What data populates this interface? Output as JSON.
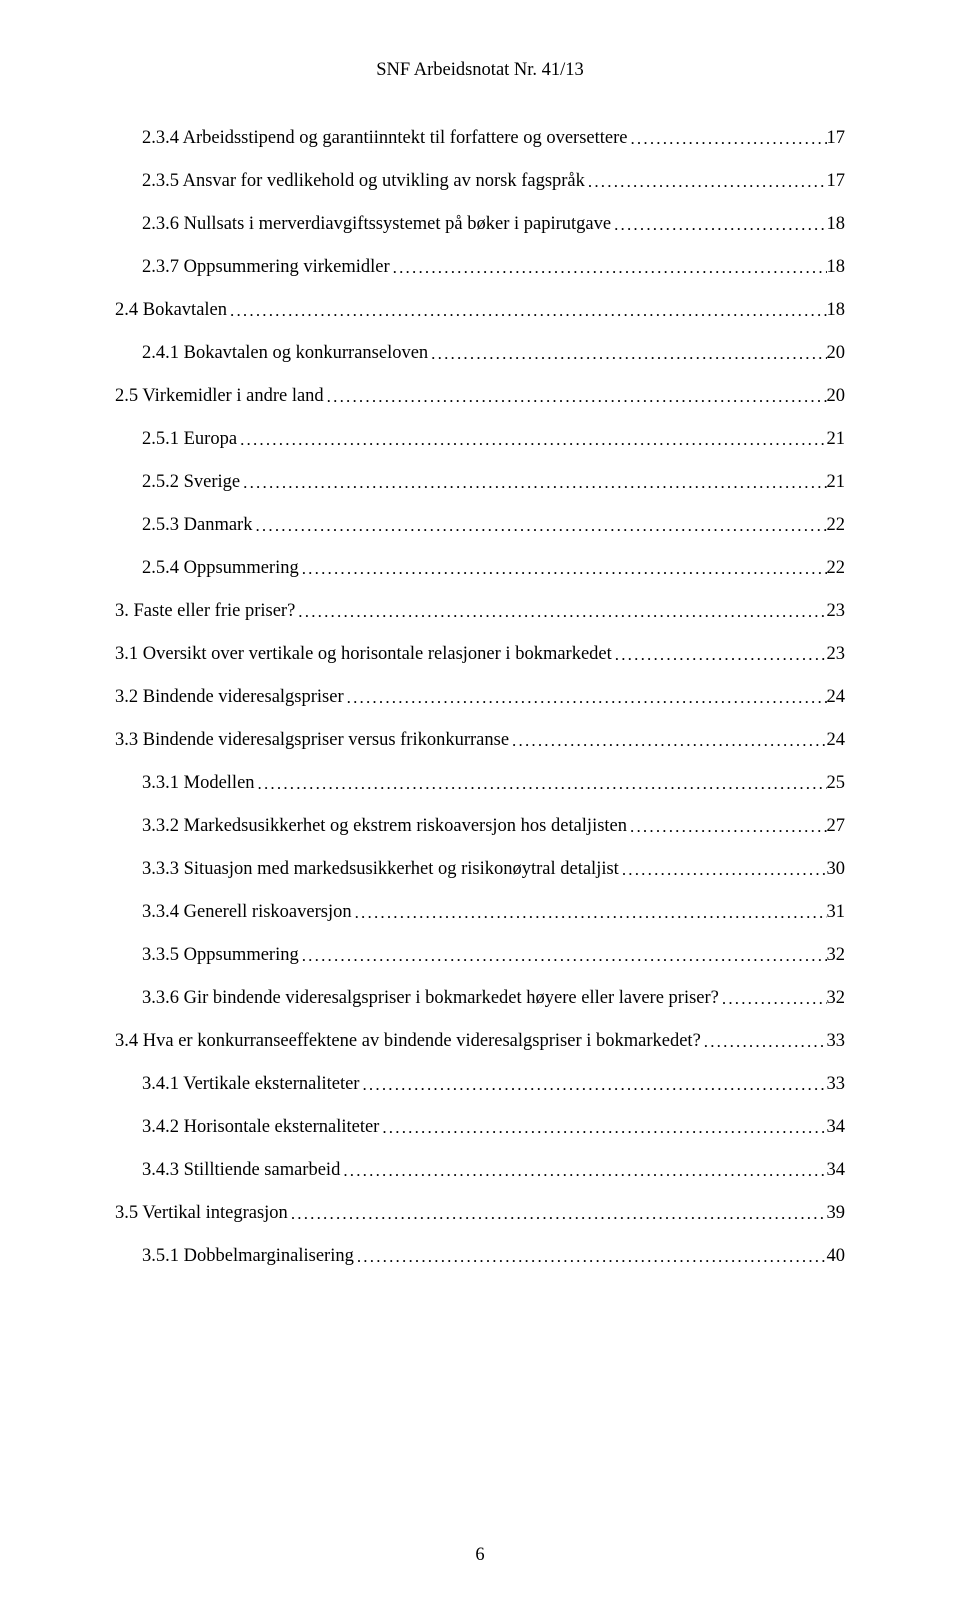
{
  "header": "SNF Arbeidsnotat Nr. 41/13",
  "pageNumber": "6",
  "toc": [
    {
      "indent": 1,
      "label": "2.3.4 Arbeidsstipend og garantiinntekt til forfattere og oversettere",
      "page": "17"
    },
    {
      "indent": 1,
      "label": "2.3.5 Ansvar for vedlikehold og utvikling av norsk fagspråk",
      "page": "17"
    },
    {
      "indent": 1,
      "label": "2.3.6 Nullsats i merverdiavgiftssystemet på bøker i papirutgave",
      "page": "18"
    },
    {
      "indent": 1,
      "label": "2.3.7 Oppsummering virkemidler",
      "page": "18"
    },
    {
      "indent": 0,
      "label": "2.4 Bokavtalen",
      "page": "18"
    },
    {
      "indent": 1,
      "label": "2.4.1 Bokavtalen og konkurranseloven",
      "page": "20"
    },
    {
      "indent": 0,
      "label": "2.5 Virkemidler i andre land",
      "page": "20"
    },
    {
      "indent": 1,
      "label": "2.5.1 Europa",
      "page": "21"
    },
    {
      "indent": 1,
      "label": "2.5.2 Sverige",
      "page": "21"
    },
    {
      "indent": 1,
      "label": "2.5.3 Danmark",
      "page": "22"
    },
    {
      "indent": 1,
      "label": "2.5.4 Oppsummering",
      "page": "22"
    },
    {
      "indent": 0,
      "label": "3. Faste eller frie priser?",
      "page": "23"
    },
    {
      "indent": 0,
      "label": "3.1 Oversikt over vertikale og horisontale relasjoner i bokmarkedet",
      "page": "23"
    },
    {
      "indent": 0,
      "label": "3.2 Bindende videresalgspriser",
      "page": "24"
    },
    {
      "indent": 0,
      "label": "3.3 Bindende videresalgspriser versus frikonkurranse",
      "page": "24"
    },
    {
      "indent": 1,
      "label": "3.3.1 Modellen",
      "page": "25"
    },
    {
      "indent": 1,
      "label": "3.3.2 Markedsusikkerhet og ekstrem riskoaversjon hos detaljisten",
      "page": "27"
    },
    {
      "indent": 1,
      "label": "3.3.3 Situasjon med markedsusikkerhet og risikonøytral detaljist",
      "page": "30"
    },
    {
      "indent": 1,
      "label": "3.3.4 Generell riskoaversjon",
      "page": "31"
    },
    {
      "indent": 1,
      "label": "3.3.5 Oppsummering",
      "page": "32"
    },
    {
      "indent": 1,
      "label": "3.3.6 Gir bindende videresalgspriser i bokmarkedet høyere eller lavere priser?",
      "page": "32"
    },
    {
      "indent": 0,
      "label": "3.4 Hva er konkurranseeffektene av bindende videresalgspriser i bokmarkedet?",
      "page": "33"
    },
    {
      "indent": 1,
      "label": "3.4.1 Vertikale eksternaliteter",
      "page": "33"
    },
    {
      "indent": 1,
      "label": "3.4.2 Horisontale eksternaliteter",
      "page": "34"
    },
    {
      "indent": 1,
      "label": "3.4.3 Stilltiende samarbeid",
      "page": "34"
    },
    {
      "indent": 0,
      "label": "3.5 Vertikal integrasjon",
      "page": "39"
    },
    {
      "indent": 1,
      "label": "3.5.1 Dobbelmarginalisering",
      "page": "40"
    }
  ]
}
